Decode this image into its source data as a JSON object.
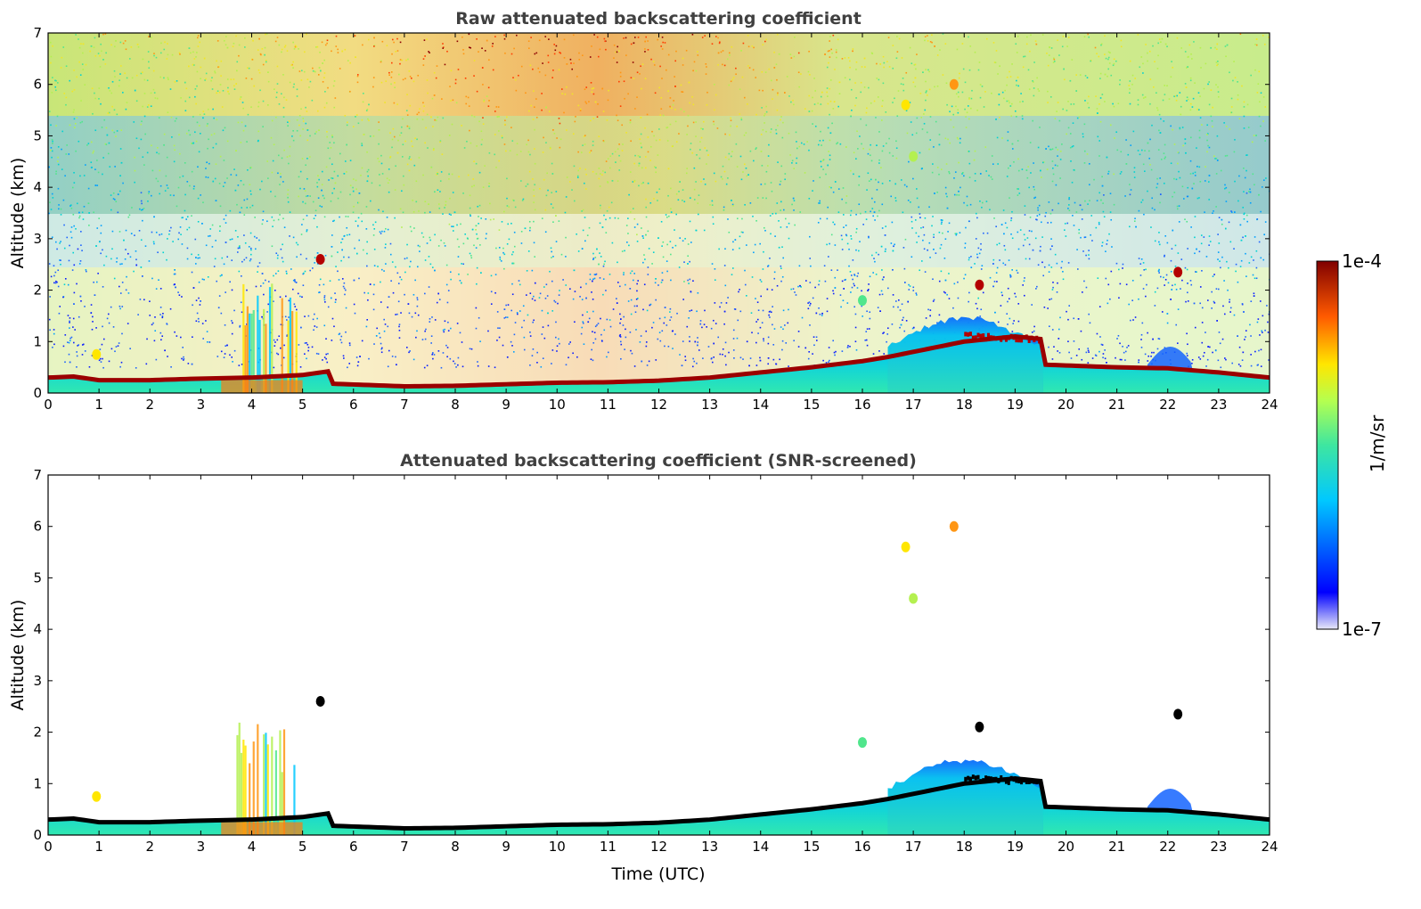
{
  "colorbar": {
    "max_label": "1e-4",
    "min_label": "1e-7",
    "unit_label": "1/m/sr",
    "vmin": 1e-07,
    "vmax": 0.0001,
    "scale": "log",
    "colormap": "jet"
  },
  "chart_data": [
    {
      "type": "heatmap",
      "title": "Raw attenuated backscattering coefficient",
      "xlabel": "",
      "ylabel": "Altitude (km)",
      "xlim": [
        0,
        24
      ],
      "ylim": [
        0,
        7
      ],
      "xticks": [
        "0",
        "1",
        "2",
        "3",
        "4",
        "5",
        "6",
        "7",
        "8",
        "9",
        "10",
        "11",
        "12",
        "13",
        "14",
        "15",
        "16",
        "17",
        "18",
        "19",
        "20",
        "21",
        "22",
        "23",
        "24"
      ],
      "yticks": [
        "0",
        "1",
        "2",
        "3",
        "4",
        "5",
        "6",
        "7"
      ],
      "boundary_layer_top_km": [
        {
          "t": 0.0,
          "z": 0.3
        },
        {
          "t": 0.5,
          "z": 0.32
        },
        {
          "t": 1.0,
          "z": 0.25
        },
        {
          "t": 2.0,
          "z": 0.25
        },
        {
          "t": 3.0,
          "z": 0.28
        },
        {
          "t": 4.0,
          "z": 0.3
        },
        {
          "t": 5.0,
          "z": 0.35
        },
        {
          "t": 5.5,
          "z": 0.42
        },
        {
          "t": 5.6,
          "z": 0.18
        },
        {
          "t": 7.0,
          "z": 0.13
        },
        {
          "t": 8.0,
          "z": 0.14
        },
        {
          "t": 9.0,
          "z": 0.17
        },
        {
          "t": 10.0,
          "z": 0.2
        },
        {
          "t": 11.0,
          "z": 0.21
        },
        {
          "t": 12.0,
          "z": 0.24
        },
        {
          "t": 13.0,
          "z": 0.3
        },
        {
          "t": 14.0,
          "z": 0.4
        },
        {
          "t": 15.0,
          "z": 0.5
        },
        {
          "t": 16.0,
          "z": 0.62
        },
        {
          "t": 16.5,
          "z": 0.7
        },
        {
          "t": 17.0,
          "z": 0.8
        },
        {
          "t": 18.0,
          "z": 1.0
        },
        {
          "t": 19.0,
          "z": 1.1
        },
        {
          "t": 19.5,
          "z": 1.05
        },
        {
          "t": 19.6,
          "z": 0.55
        },
        {
          "t": 21.0,
          "z": 0.5
        },
        {
          "t": 22.0,
          "z": 0.48
        },
        {
          "t": 23.0,
          "z": 0.4
        },
        {
          "t": 24.0,
          "z": 0.3
        }
      ]
    },
    {
      "type": "heatmap",
      "title": "Attenuated backscattering coefficient (SNR-screened)",
      "xlabel": "Time (UTC)",
      "ylabel": "Altitude (km)",
      "xlim": [
        0,
        24
      ],
      "ylim": [
        0,
        7
      ],
      "xticks": [
        "0",
        "1",
        "2",
        "3",
        "4",
        "5",
        "6",
        "7",
        "8",
        "9",
        "10",
        "11",
        "12",
        "13",
        "14",
        "15",
        "16",
        "17",
        "18",
        "19",
        "20",
        "21",
        "22",
        "23",
        "24"
      ],
      "yticks": [
        "0",
        "1",
        "2",
        "3",
        "4",
        "5",
        "6",
        "7"
      ]
    }
  ]
}
